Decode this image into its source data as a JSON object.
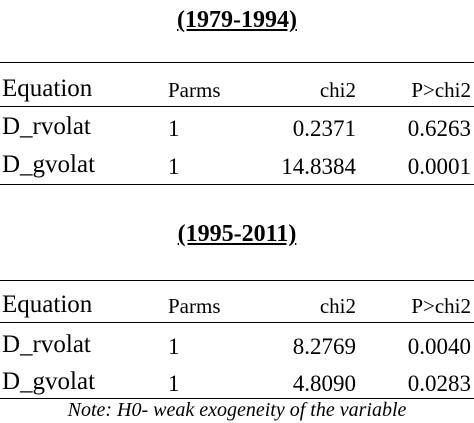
{
  "tables": [
    {
      "title": "(1979-1994)",
      "header": [
        "Equation",
        "Parms",
        "chi2",
        "P>chi2"
      ],
      "rows": [
        [
          "D_rvolat",
          "1",
          "0.2371",
          "0.6263"
        ],
        [
          "D_gvolat",
          "1",
          "14.8384",
          "0.0001"
        ]
      ]
    },
    {
      "title": "(1995-2011)",
      "header": [
        "Equation",
        "Parms",
        "chi2",
        "P>chi2"
      ],
      "rows": [
        [
          "D_rvolat",
          "1",
          "8.2769",
          "0.0040"
        ],
        [
          "D_gvolat",
          "1",
          "4.8090",
          "0.0283"
        ]
      ]
    }
  ],
  "note": "Note: H0- weak exogeneity of the variable"
}
